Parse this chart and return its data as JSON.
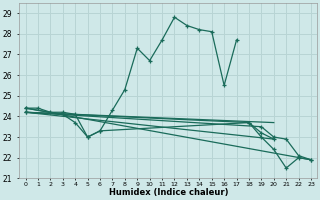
{
  "xlabel": "Humidex (Indice chaleur)",
  "background_color": "#cfe8e8",
  "grid_color": "#b8d4d4",
  "line_color": "#1a6b5a",
  "xlim": [
    -0.5,
    23.5
  ],
  "ylim": [
    21.0,
    29.5
  ],
  "yticks": [
    21,
    22,
    23,
    24,
    25,
    26,
    27,
    28,
    29
  ],
  "xtick_labels": [
    "0",
    "1",
    "2",
    "3",
    "4",
    "5",
    "6",
    "7",
    "8",
    "9",
    "10",
    "11",
    "12",
    "13",
    "14",
    "15",
    "16",
    "17",
    "18",
    "19",
    "20",
    "21",
    "22",
    "23"
  ],
  "line1_x": [
    0,
    1,
    2,
    3,
    4,
    5,
    6,
    7,
    8,
    9,
    10,
    11,
    12,
    13,
    14,
    15,
    16,
    17
  ],
  "line1_y": [
    24.4,
    24.4,
    24.2,
    24.2,
    24.1,
    23.0,
    23.3,
    24.3,
    25.3,
    27.3,
    26.7,
    27.7,
    28.8,
    28.4,
    28.2,
    28.1,
    25.5,
    27.7
  ],
  "line2_x": [
    0,
    3,
    4,
    5,
    6,
    18,
    19,
    20,
    21,
    22,
    23
  ],
  "line2_y": [
    24.4,
    24.1,
    23.7,
    23.0,
    23.3,
    23.7,
    23.0,
    22.4,
    21.5,
    22.0,
    21.9
  ],
  "line3_x": [
    0,
    19,
    20,
    21,
    22,
    23
  ],
  "line3_y": [
    24.2,
    23.5,
    23.0,
    22.9,
    22.1,
    21.9
  ],
  "line4_x": [
    0,
    18,
    19,
    20
  ],
  "line4_y": [
    24.2,
    23.7,
    23.2,
    22.9
  ]
}
